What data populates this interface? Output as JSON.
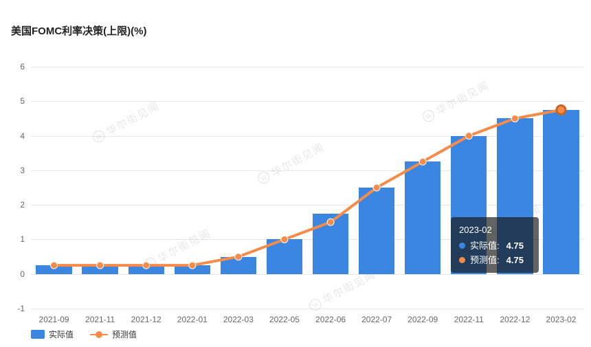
{
  "title": "美国FOMC利率决策(上限)(%)",
  "watermark": {
    "text": "华尔街见闻"
  },
  "chart_data": {
    "type": "bar",
    "title": "美国FOMC利率决策(上限)(%)",
    "categories": [
      "2021-09",
      "2021-11",
      "2021-12",
      "2022-01",
      "2022-03",
      "2022-05",
      "2022-06",
      "2022-07",
      "2022-09",
      "2022-11",
      "2022-12",
      "2023-02"
    ],
    "series": [
      {
        "name": "实际值",
        "type": "bar",
        "color": "#3a86e0",
        "values": [
          0.25,
          0.25,
          0.25,
          0.25,
          0.5,
          1,
          1.75,
          2.5,
          3.25,
          4,
          4.5,
          4.75
        ]
      },
      {
        "name": "预测值",
        "type": "line",
        "color": "#f78b4a",
        "values": [
          0.25,
          0.25,
          0.25,
          0.25,
          0.5,
          1,
          1.5,
          2.5,
          3.25,
          4,
          4.5,
          4.75
        ]
      }
    ],
    "ylim": [
      -1,
      6
    ],
    "y_ticks": [
      6,
      5,
      4,
      3,
      2,
      1,
      0,
      -1
    ],
    "grid": true,
    "legend_position": "bottom-left",
    "highlight_index": 11
  },
  "tooltip": {
    "title": "2023-02",
    "rows": [
      {
        "label": "实际值",
        "value": "4.75",
        "color": "#3a86e0"
      },
      {
        "label": "预测值",
        "value": "4.75",
        "color": "#f78b4a"
      }
    ]
  }
}
